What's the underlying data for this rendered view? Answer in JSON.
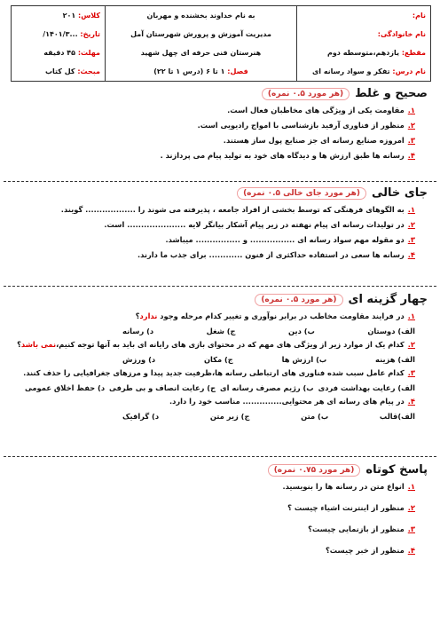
{
  "header": {
    "right": [
      {
        "label": "نام:",
        "value": ""
      },
      {
        "label": "نام خانوادگی:",
        "value": ""
      },
      {
        "label": "مقطع:",
        "value": "یازدهم،متوسطه دوم"
      },
      {
        "label": "نام درس:",
        "value": "تفکر و سواد رسانه ای"
      }
    ],
    "center": [
      "به نام خداوند بخشنده و مهربان",
      "مدیریت آموزش و پرورش شهرستان آمل",
      "هنرستان فنی حرفه ای چهل شهید",
      {
        "label": "فصل:",
        "value": "۱ تا ۶ (درس ۱ تا ۲۲)"
      }
    ],
    "left": [
      {
        "label": "کلاس:",
        "value": "۲۰۱"
      },
      {
        "label": "تاریخ:",
        "value": "...۱۴۰۱/۳/"
      },
      {
        "label": "مهلت:",
        "value": "۴۵ دقیقه"
      },
      {
        "label": "مبحث:",
        "value": "کل کتاب"
      }
    ]
  },
  "sections": [
    {
      "title": "صحیح و غلط",
      "score": "(هر مورد ۰.۵ نمره)",
      "items": [
        {
          "number": "۱.",
          "text": "مقاومت یکی از ویژگی های مخاطبان فعال است."
        },
        {
          "number": "۲.",
          "text": "منظور از فناوری آرفید بازشناسی با امواج رادیویی است."
        },
        {
          "number": "۳.",
          "text": "امروزه صنایع رسانه ای جز صنایع پول ساز هستند."
        },
        {
          "number": "۴.",
          "text": "رسانه ها طبق ارزش ها و دیدگاه های خود به تولید پیام می پردازند ."
        }
      ]
    },
    {
      "title": "جای خالی",
      "score": "(هر مورد جای خالی ۰.۵ نمره)",
      "items": [
        {
          "number": "۱.",
          "text": "به الگوهای فرهنگی که توسط بخشی از افراد جامعه ، پذیرفته می شوند را .................. گویند."
        },
        {
          "number": "۲.",
          "text": "در تولیدات رسانه ای پیام نهفته در زیر پیام آشکار بیانگر لایه ..................... است."
        },
        {
          "number": "۳.",
          "text": "دو مقوله مهم سواد رسانه ای ................ و ................ میباشد."
        },
        {
          "number": "۴.",
          "text": "رسانه ها سعی در استفاده حداکثری از فنون ............ برای جذب ما دارند."
        }
      ]
    },
    {
      "title": "چهار گزینه ای",
      "score": "(هر مورد ۰.۵ نمره)",
      "items": [
        {
          "number": "۱.",
          "text": "در فرایند مقاومت مخاطب در برابر نوآوری و تغییر کدام مرحله وجود ",
          "highlight": "ندارد",
          "tail": "؟",
          "options": [
            "الف) دوستان",
            "ب) دین",
            "ج) شغل",
            "د) رسانه"
          ]
        },
        {
          "number": "۲.",
          "text": "کدام یک از موارد زیر از ویژگی های مهم که در محتوای بازی های رایانه ای باید به آنها توجه کنیم،",
          "highlight": "نمی باشد",
          "tail": "؟",
          "options": [
            "الف) هزینه",
            "ب) ارزش ها",
            "ج) مکان",
            "د) ورزش"
          ]
        },
        {
          "number": "۳.",
          "text": "کدام عامل سبب شده فناوری های ارتباطی رسانه ها،ظرفیت جدید پیدا و مرزهای جغرافیایی را حذف کنند.",
          "options": [
            "الف) رعایت بهداشت فردی",
            "ب) رژیم مصرف رسانه ای",
            "ج) رعایت انصاف و بی طرفی",
            "د) حفظ اخلاق عمومی"
          ]
        },
        {
          "number": "۴.",
          "text": "در پیام های رسانه ای هر محتوایی.............. مناسب خود را دارد.",
          "options": [
            "الف)قالب",
            "ب) متن",
            "ج) زیر متن",
            "د) گرافیک"
          ]
        }
      ]
    },
    {
      "title": "پاسخ کوتاه",
      "score": "(هر مورد ۰.۷۵ نمره)",
      "items": [
        {
          "number": "۱.",
          "text": "انواع متن در رسانه ها را بنویسید."
        },
        {
          "number": "۲.",
          "text": "منظور از اینترنت اشیاء چیست ؟"
        },
        {
          "number": "۳.",
          "text": "منظور از بازنمایی چیست؟"
        },
        {
          "number": "۴.",
          "text": "منظور از خبر چیست؟"
        }
      ]
    }
  ]
}
